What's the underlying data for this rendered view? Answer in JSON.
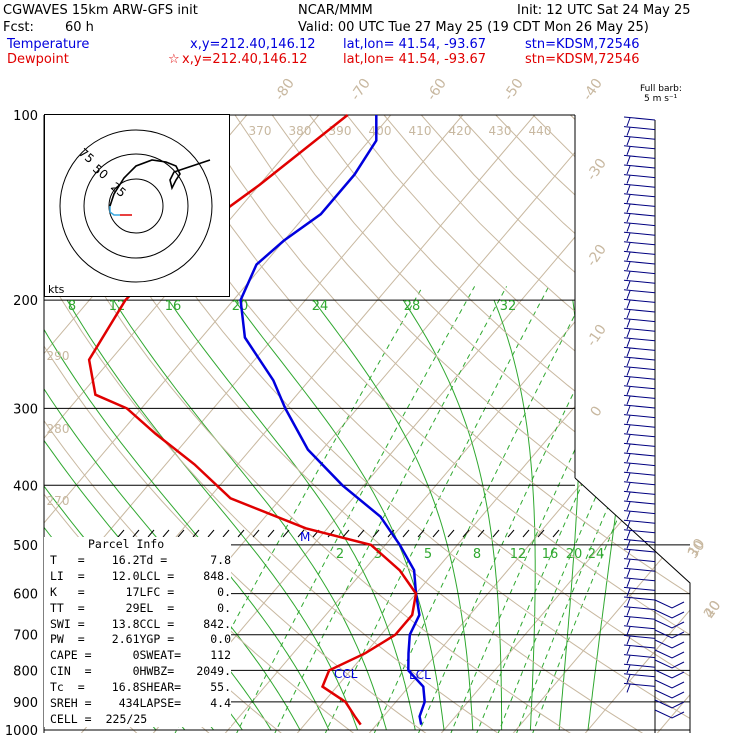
{
  "header": {
    "model": "CGWAVES 15km ARW-GFS init",
    "center": "NCAR/MMM",
    "init": "Init: 12 UTC Sat 24 May 25",
    "fcst_label": "Fcst:",
    "fcst_value": "60 h",
    "valid": "Valid: 00 UTC Tue 27 May 25 (19 CDT Mon 26 May 25)",
    "temp_legend": "Temperature",
    "dew_legend": "Dewpoint",
    "xy": "x,y=212.40,146.12",
    "latlon": "lat,lon= 41.54, -93.67",
    "stn": "stn=KDSM,72546",
    "wind_label": "Full barb:",
    "wind_units": "5 m s⁻¹"
  },
  "colors": {
    "temperature": "#0000dd",
    "dewpoint": "#e00000",
    "isotherm": "#c8b8a0",
    "mixing_ratio": "#30a830",
    "black": "#000000"
  },
  "hodograph": {
    "units": "kts",
    "rings": [
      "75",
      "50",
      "25"
    ]
  },
  "chart_data": {
    "type": "line",
    "pressure_labels": [
      "100",
      "200",
      "300",
      "400",
      "500",
      "600",
      "700",
      "800",
      "900",
      "1000"
    ],
    "isotherm_labels": [
      "-80",
      "-70",
      "-60",
      "-50",
      "-40",
      "-30",
      "-20",
      "-10",
      "0",
      "10",
      "20",
      "30",
      "40"
    ],
    "theta_labels_top": [
      "370",
      "380",
      "390",
      "400",
      "410",
      "420",
      "430",
      "440"
    ],
    "theta_labels_left": [
      "290",
      "280",
      "270"
    ],
    "mixing_ratio_labels_upper": [
      "8",
      "12",
      "16",
      "20",
      "24",
      "28",
      "32"
    ],
    "mixing_ratio_labels_lower": [
      "2",
      "3",
      "5",
      "8",
      "12",
      "16",
      "20",
      "24"
    ],
    "series": [
      {
        "name": "Temperature",
        "pressure": [
          100,
          110,
          125,
          145,
          160,
          175,
          200,
          230,
          270,
          300,
          350,
          400,
          450,
          500,
          550,
          600,
          650,
          700,
          750,
          800,
          850,
          900,
          950,
          980
        ],
        "temperature": [
          -62,
          -59,
          -58,
          -58,
          -60,
          -61,
          -59,
          -54,
          -45,
          -40,
          -32,
          -23,
          -14,
          -8,
          -3,
          0,
          3,
          4,
          6,
          8,
          12,
          14,
          15,
          16.2
        ]
      },
      {
        "name": "Dewpoint",
        "pressure": [
          100,
          130,
          160,
          200,
          250,
          285,
          300,
          330,
          370,
          420,
          470,
          500,
          550,
          600,
          650,
          700,
          750,
          800,
          850,
          900,
          950,
          980
        ],
        "dewpoint": [
          -66,
          -70,
          -74,
          -75,
          -73,
          -68,
          -62,
          -55,
          -46,
          -37,
          -23,
          -12,
          -5,
          0,
          2,
          2,
          0,
          -3,
          -2,
          3,
          6,
          7.8
        ]
      }
    ],
    "lcl_label": "LCL",
    "ccl_label": "CCL",
    "marker": "M"
  },
  "parcel": {
    "title": "Parcel Info",
    "rows": [
      [
        "T   =",
        "16.2",
        "Td =",
        "7.8"
      ],
      [
        "LI  =",
        "12.0",
        "LCL =",
        "848."
      ],
      [
        "K   =",
        "17",
        "LFC =",
        "0."
      ],
      [
        "TT  =",
        "29",
        "EL  =",
        "0."
      ],
      [
        "SWI =",
        "13.8",
        "CCL =",
        "842."
      ],
      [
        "PW  =",
        "2.61",
        "YGP =",
        "0.0"
      ],
      [
        "CAPE =",
        "0",
        "SWEAT=",
        "112"
      ],
      [
        "CIN  =",
        "0",
        "HWBZ=",
        "2049."
      ],
      [
        "Tc  =",
        "16.8",
        "SHEAR=",
        "55."
      ],
      [
        "SREH =",
        "434",
        "LAPSE=",
        "4.4"
      ],
      [
        "CELL =",
        "225/25",
        "",
        ""
      ]
    ]
  }
}
